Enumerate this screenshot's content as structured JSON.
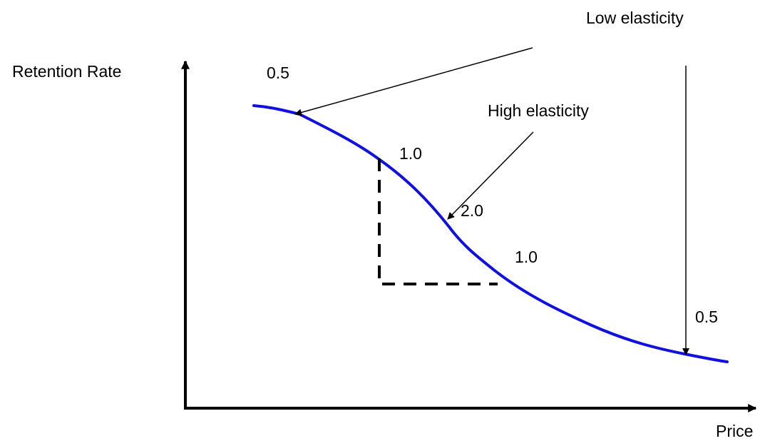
{
  "axes": {
    "y_label": "Retention Rate",
    "x_label": "Price"
  },
  "annotations": {
    "low_elasticity": "Low elasticity",
    "high_elasticity": "High elasticity"
  },
  "elasticity_values": {
    "left_top": "0.5",
    "upper_middle": "1.0",
    "center": "2.0",
    "lower_middle": "1.0",
    "right_bottom": "0.5"
  },
  "colors": {
    "curve": "#1010e0",
    "axes": "#000000",
    "arrows": "#000000"
  }
}
